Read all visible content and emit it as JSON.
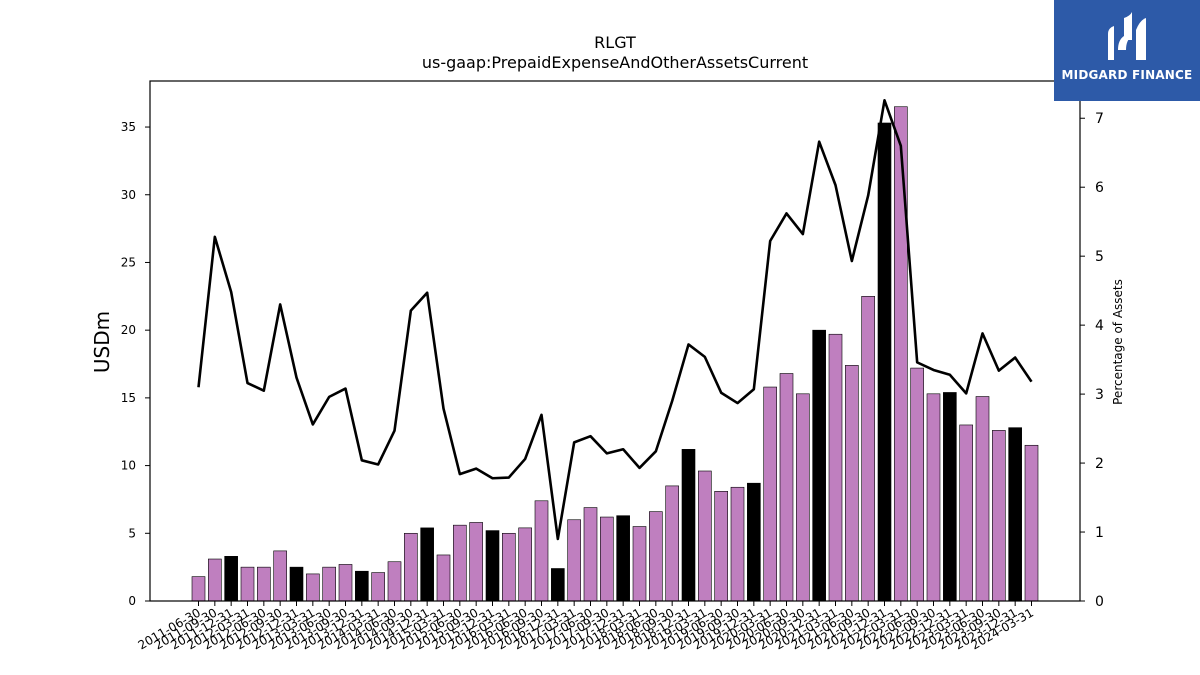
{
  "chart_data": {
    "type": "bar+line",
    "title": "RLGT",
    "subtitle": "us-gaap:PrepaidExpenseAndOtherAssetsCurrent",
    "ylabel": "USDm",
    "y2label": "Percentage of Assets",
    "ylim": [
      0,
      38.4
    ],
    "y2lim": [
      0,
      7.54
    ],
    "yticks": [
      0,
      5,
      10,
      15,
      20,
      25,
      30,
      35
    ],
    "y2ticks": [
      0,
      1,
      2,
      3,
      4,
      5,
      6,
      7
    ],
    "grid": false,
    "colors": {
      "bar": "#bf7fbf",
      "bar_highlight": "#000000",
      "line": "#000000"
    },
    "categories": [
      "2011-06-30",
      "2011-09-30",
      "2011-12-31",
      "2012-03-31",
      "2012-06-30",
      "2012-09-30",
      "2012-12-31",
      "2013-03-31",
      "2013-06-30",
      "2013-09-30",
      "2013-12-31",
      "2014-03-31",
      "2014-06-30",
      "2014-09-30",
      "2014-12-31",
      "2015-03-31",
      "2015-06-30",
      "2015-09-30",
      "2015-12-31",
      "2016-03-31",
      "2016-06-30",
      "2016-09-30",
      "2016-12-31",
      "2017-03-31",
      "2017-06-30",
      "2017-09-30",
      "2017-12-31",
      "2018-03-31",
      "2018-06-30",
      "2018-09-30",
      "2018-12-31",
      "2019-03-31",
      "2019-06-30",
      "2019-09-30",
      "2019-12-31",
      "2020-03-31",
      "2020-06-30",
      "2020-09-30",
      "2020-12-31",
      "2021-03-31",
      "2021-06-30",
      "2021-09-30",
      "2021-12-31",
      "2022-03-31",
      "2022-06-30",
      "2022-09-30",
      "2022-12-31",
      "2023-03-31",
      "2023-06-30",
      "2023-09-30",
      "2023-12-31",
      "2024-03-31"
    ],
    "series": [
      {
        "type": "bar",
        "values": [
          1.8,
          3.1,
          3.3,
          2.5,
          2.5,
          3.7,
          2.5,
          2.0,
          2.5,
          2.7,
          2.2,
          2.1,
          2.9,
          5.0,
          5.4,
          3.4,
          5.6,
          5.8,
          5.2,
          5.0,
          5.4,
          7.4,
          2.4,
          6.0,
          6.9,
          6.2,
          6.3,
          5.5,
          6.6,
          8.5,
          11.2,
          9.6,
          8.1,
          8.4,
          8.7,
          15.8,
          16.8,
          15.3,
          20.0,
          19.7,
          17.4,
          22.5,
          35.3,
          36.5,
          17.2,
          15.3,
          15.4,
          13.0,
          15.1,
          12.6,
          12.8,
          11.5
        ],
        "highlighted": [
          false,
          false,
          true,
          false,
          false,
          false,
          true,
          false,
          false,
          false,
          true,
          false,
          false,
          false,
          true,
          false,
          false,
          false,
          true,
          false,
          false,
          false,
          true,
          false,
          false,
          false,
          true,
          false,
          false,
          false,
          true,
          false,
          false,
          false,
          true,
          false,
          false,
          false,
          true,
          false,
          false,
          false,
          true,
          false,
          false,
          false,
          true,
          false,
          false,
          false,
          true,
          false
        ]
      },
      {
        "type": "line",
        "axis": "right",
        "values": [
          3.1,
          5.28,
          4.48,
          3.16,
          3.05,
          4.3,
          3.24,
          2.56,
          2.96,
          3.08,
          2.04,
          1.98,
          2.47,
          4.21,
          4.47,
          2.79,
          1.84,
          1.92,
          1.78,
          1.79,
          2.06,
          2.7,
          0.9,
          2.3,
          2.39,
          2.14,
          2.2,
          1.93,
          2.17,
          2.9,
          3.72,
          3.54,
          3.02,
          2.87,
          3.07,
          5.22,
          5.62,
          5.32,
          6.66,
          6.03,
          4.93,
          5.88,
          7.26,
          6.6,
          3.46,
          3.35,
          3.28,
          3.01,
          3.88,
          3.34,
          3.53,
          3.18
        ]
      }
    ]
  },
  "logo": {
    "text": "MIDGARD FINANCE"
  }
}
